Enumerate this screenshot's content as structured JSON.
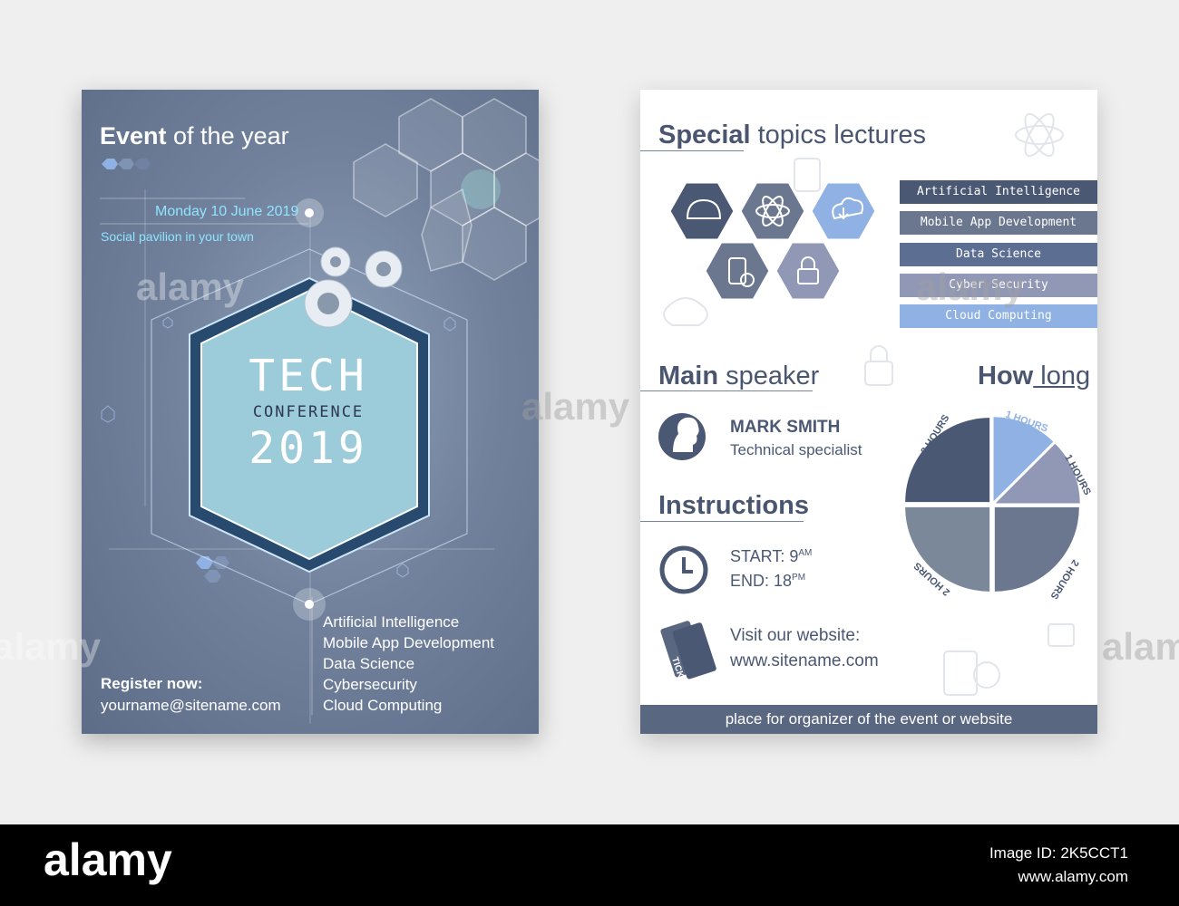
{
  "left_flyer": {
    "headline_bold": "Event",
    "headline_rest": " of the year",
    "date": "Monday 10 June 2019",
    "venue": "Social pavilion in your town",
    "tech": "TECH",
    "conference": "CONFERENCE",
    "year": "2019",
    "topics": [
      "Artificial Intelligence",
      "Mobile App Development",
      "Data Science",
      "Cybersecurity",
      "Cloud Computing"
    ],
    "register_label": "Register now:",
    "email": "yourname@sitename.com"
  },
  "right_flyer": {
    "topics_heading_bold": "Special",
    "topics_heading_rest": " topics lectures",
    "topic_pills": [
      {
        "label": "Artificial Intelligence",
        "color": "#4b5873"
      },
      {
        "label": "Mobile App Development",
        "color": "#6a778f"
      },
      {
        "label": "Data Science",
        "color": "#5d6e93"
      },
      {
        "label": "Cyber Security",
        "color": "#9098b6"
      },
      {
        "label": "Cloud Computing",
        "color": "#8fb1e3"
      }
    ],
    "speaker_heading_bold": "Main",
    "speaker_heading_rest": " speaker",
    "speaker_name": "MARK SMITH",
    "speaker_title": "Technical specialist",
    "how_long_bold": "How",
    "how_long_rest": " long",
    "instructions_heading": "Instructions",
    "start_label": "START: 9",
    "start_sup": "AM",
    "end_label": "END: 18",
    "end_sup": "PM",
    "tickets_label": "TICKETS",
    "visit_label": "Visit our website:",
    "website": "www.sitename.com",
    "footer": "place for organizer of the event or website",
    "pie_labels": {
      "top_left": "2 HOURS",
      "top_right": "1 HOURS",
      "right": "1 HOURS",
      "bottom_right": "2 HOURS",
      "bottom_left": "2 HOURS"
    }
  },
  "chart_data": {
    "type": "pie",
    "categories": [
      "2 HOURS",
      "1 HOURS",
      "1 HOURS",
      "2 HOURS",
      "2 HOURS"
    ],
    "values": [
      2,
      1,
      1,
      2,
      2
    ],
    "colors": [
      "#4b5873",
      "#8fb1e3",
      "#9098b6",
      "#6a778f",
      "#7a8899"
    ]
  },
  "watermark": "alamy",
  "footer_band": {
    "brand": "alamy",
    "image_id_label": "Image ID: 2K5CCT1",
    "url": "www.alamy.com"
  }
}
